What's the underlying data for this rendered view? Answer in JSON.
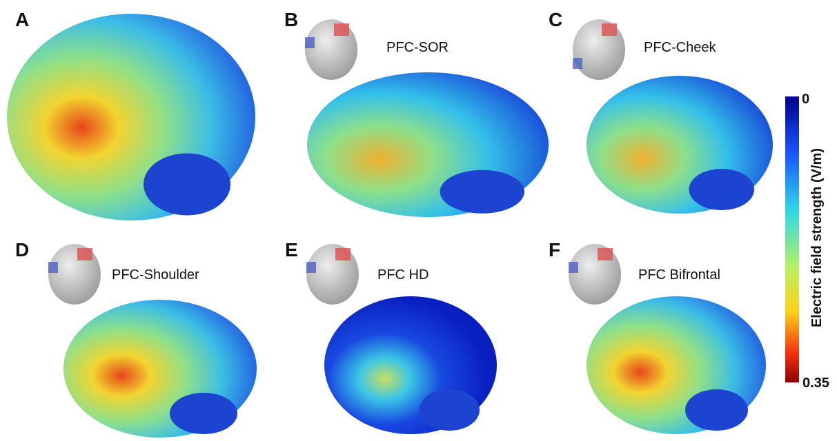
{
  "panels": [
    {
      "letter": "A"
    },
    {
      "letter": "B",
      "label": "PFC-SOR"
    },
    {
      "letter": "C",
      "label": "PFC-Cheek"
    },
    {
      "letter": "D",
      "label": "PFC-Shoulder"
    },
    {
      "letter": "E",
      "label": "PFC HD"
    },
    {
      "letter": "F",
      "label": "PFC Bifrontal"
    }
  ],
  "colorbar": {
    "title": "Electric field strength (V/m)",
    "min": "0",
    "max": "0.35"
  }
}
